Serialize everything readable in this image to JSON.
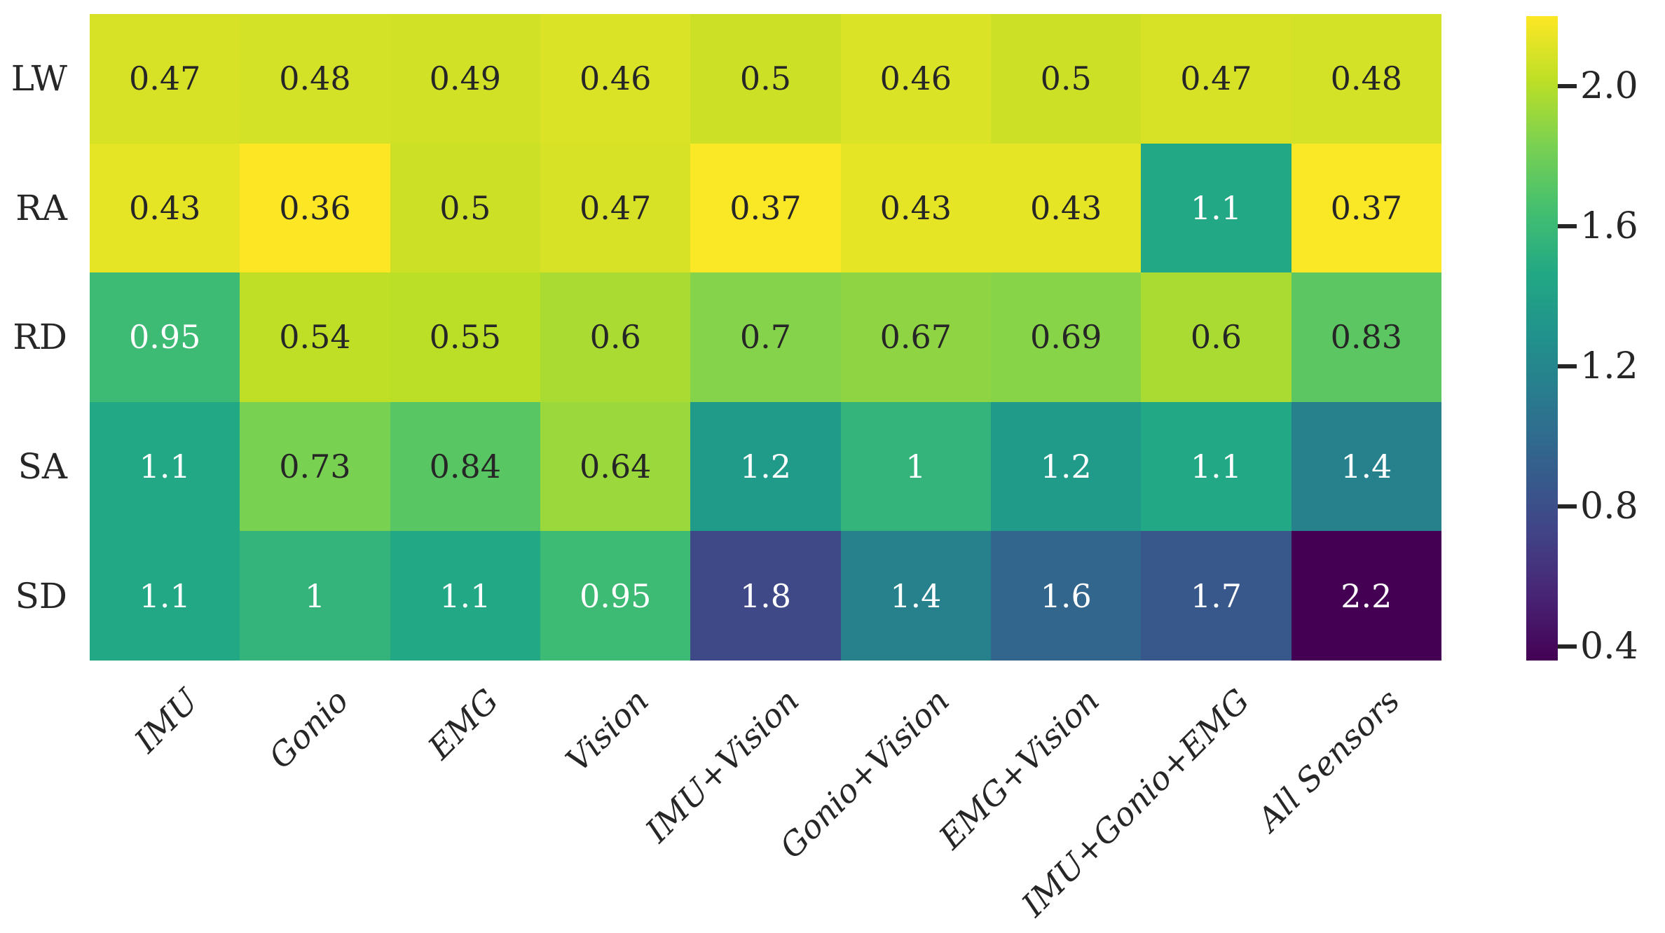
{
  "figure": {
    "background": "#ffffff"
  },
  "chart_data": {
    "type": "heatmap",
    "rows": [
      "LW",
      "RA",
      "RD",
      "SA",
      "SD"
    ],
    "columns": [
      "IMU",
      "Gonio",
      "EMG",
      "Vision",
      "IMU+Vision",
      "Gonio+Vision",
      "EMG+Vision",
      "IMU+Gonio+EMG",
      "All Sensors"
    ],
    "values": [
      [
        0.47,
        0.48,
        0.49,
        0.46,
        0.5,
        0.46,
        0.5,
        0.47,
        0.48
      ],
      [
        0.43,
        0.36,
        0.5,
        0.47,
        0.37,
        0.43,
        0.43,
        1.1,
        0.37
      ],
      [
        0.95,
        0.54,
        0.55,
        0.6,
        0.7,
        0.67,
        0.69,
        0.6,
        0.83
      ],
      [
        1.1,
        0.73,
        0.84,
        0.64,
        1.2,
        1.0,
        1.2,
        1.1,
        1.4
      ],
      [
        1.1,
        1.0,
        1.1,
        0.95,
        1.8,
        1.4,
        1.6,
        1.7,
        2.2
      ]
    ],
    "cell_labels": [
      [
        "0.47",
        "0.48",
        "0.49",
        "0.46",
        "0.5",
        "0.46",
        "0.5",
        "0.47",
        "0.48"
      ],
      [
        "0.43",
        "0.36",
        "0.5",
        "0.47",
        "0.37",
        "0.43",
        "0.43",
        "1.1",
        "0.37"
      ],
      [
        "0.95",
        "0.54",
        "0.55",
        "0.6",
        "0.7",
        "0.67",
        "0.69",
        "0.6",
        "0.83"
      ],
      [
        "1.1",
        "0.73",
        "0.84",
        "0.64",
        "1.2",
        "1",
        "1.2",
        "1.1",
        "1.4"
      ],
      [
        "1.1",
        "1",
        "1.1",
        "0.95",
        "1.8",
        "1.4",
        "1.6",
        "1.7",
        "2.2"
      ]
    ],
    "colormap": "viridis_r",
    "vmin": 0.36,
    "vmax": 2.2,
    "grid": false,
    "legend_position": "right-colorbar",
    "colorbar": {
      "ticks": [
        {
          "label": "2.0",
          "value": 2.0
        },
        {
          "label": "1.6",
          "value": 1.6
        },
        {
          "label": "1.2",
          "value": 1.2
        },
        {
          "label": "0.8",
          "value": 0.8
        },
        {
          "label": "0.4",
          "value": 0.4
        }
      ]
    },
    "palette": {
      "annotation_dark": "#262626",
      "annotation_light": "#ffffff",
      "viridis_anchors": [
        {
          "t": 0.0,
          "hex": "#440154"
        },
        {
          "t": 0.1,
          "hex": "#482475"
        },
        {
          "t": 0.2,
          "hex": "#414487"
        },
        {
          "t": 0.3,
          "hex": "#355f8d"
        },
        {
          "t": 0.4,
          "hex": "#2a788e"
        },
        {
          "t": 0.5,
          "hex": "#21918c"
        },
        {
          "t": 0.6,
          "hex": "#22a884"
        },
        {
          "t": 0.7,
          "hex": "#44bf70"
        },
        {
          "t": 0.8,
          "hex": "#7ad151"
        },
        {
          "t": 0.9,
          "hex": "#bddf26"
        },
        {
          "t": 1.0,
          "hex": "#fde725"
        }
      ]
    }
  }
}
